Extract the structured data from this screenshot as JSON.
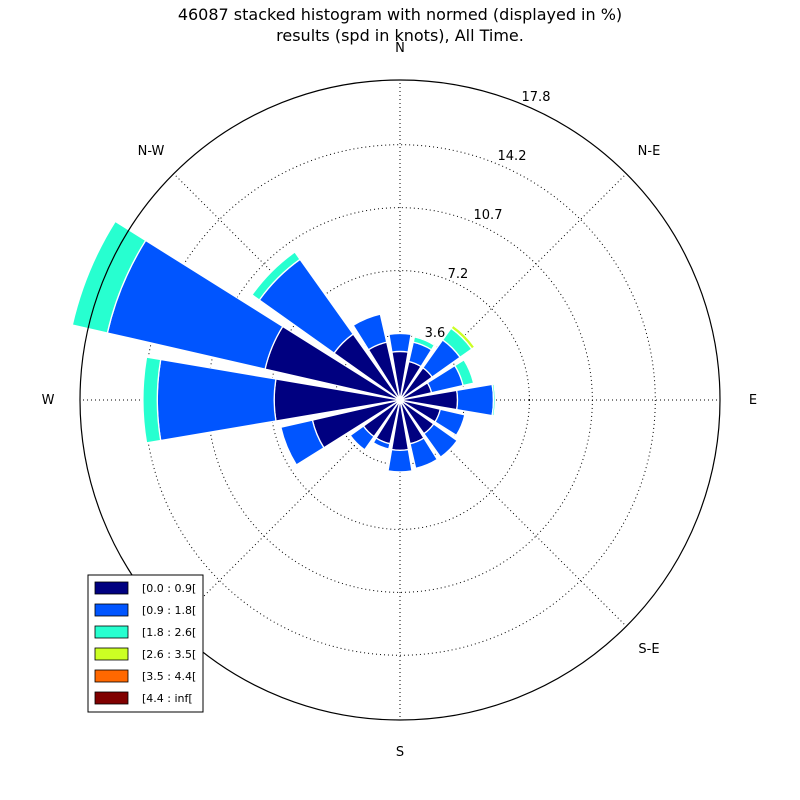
{
  "chart_data": {
    "type": "windrose",
    "title": "46087 stacked histogram with normed (displayed in %)",
    "subtitle": "results (spd in knots), All Time.",
    "directions": [
      "N",
      "N-E",
      "E",
      "S-E",
      "S",
      "S-W",
      "W",
      "N-W"
    ],
    "rings": [
      "3.6",
      "7.2",
      "10.7",
      "14.2",
      "17.8"
    ],
    "ring_values": [
      3.6,
      7.2,
      10.7,
      14.2,
      17.8
    ],
    "rmax": 17.8,
    "grid": true,
    "legend_position": "lower-left",
    "sector_angles_deg": [
      0,
      22.5,
      45,
      67.5,
      90,
      112.5,
      135,
      157.5,
      180,
      202.5,
      225,
      247.5,
      270,
      292.5,
      315,
      337.5
    ],
    "series": [
      {
        "name": "[0.0 : 0.9[",
        "color": "#000080",
        "values": [
          2.7,
          2.2,
          2.2,
          1.8,
          3.2,
          2.3,
          2.3,
          2.5,
          2.8,
          2.5,
          2.5,
          5.0,
          7.0,
          7.7,
          4.5,
          3.3
        ]
      },
      {
        "name": "[0.9 : 1.8[",
        "color": "#0055ff",
        "values": [
          1.0,
          1.1,
          1.9,
          1.8,
          2.0,
          1.4,
          1.6,
          1.4,
          1.2,
          0.3,
          0.9,
          1.8,
          6.5,
          9.0,
          5.1,
          1.6
        ]
      },
      {
        "name": "[1.8 : 2.6[",
        "color": "#27ffd0",
        "values": [
          0.0,
          0.3,
          0.8,
          0.6,
          0.1,
          0.0,
          0.0,
          0.0,
          0.0,
          0.0,
          0.0,
          0.0,
          0.8,
          2.0,
          0.5,
          0.0
        ]
      },
      {
        "name": "[2.6 : 3.5[",
        "color": "#ccff23",
        "values": [
          0,
          0,
          0.2,
          0,
          0,
          0,
          0,
          0,
          0,
          0,
          0,
          0,
          0,
          0,
          0,
          0
        ]
      },
      {
        "name": "[3.5 : 4.4[",
        "color": "#ff6800",
        "values": [
          0,
          0,
          0,
          0,
          0,
          0,
          0,
          0,
          0,
          0,
          0,
          0,
          0,
          0,
          0,
          0
        ]
      },
      {
        "name": "[4.4 : inf[",
        "color": "#800000",
        "values": [
          0,
          0,
          0,
          0,
          0,
          0,
          0,
          0,
          0,
          0,
          0,
          0,
          0,
          0,
          0,
          0
        ]
      }
    ]
  }
}
